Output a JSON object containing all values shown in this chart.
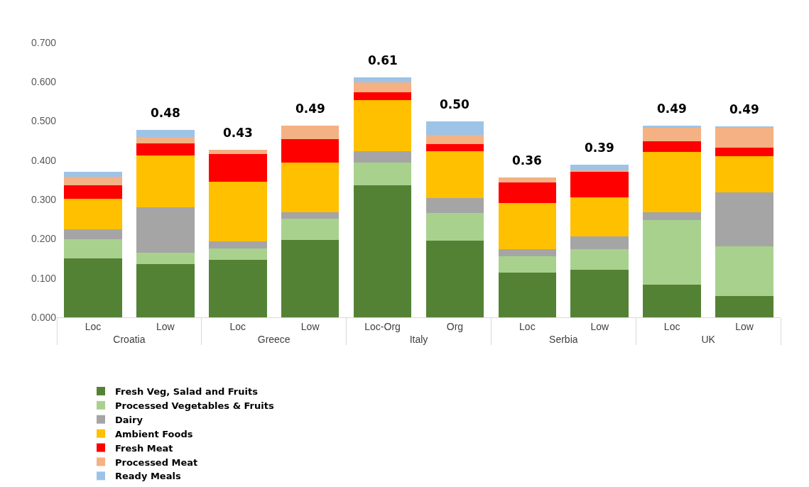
{
  "chart_data": {
    "type": "bar",
    "stacked": true,
    "categories": [
      "Loc",
      "Low",
      "Loc",
      "Low",
      "Loc-Org",
      "Org",
      "Loc",
      "Low",
      "Loc",
      "Low"
    ],
    "annotations": [
      "Croatia",
      "Greece",
      "Italy",
      "Serbia",
      "UK"
    ],
    "series": [
      {
        "name": "Fresh Veg, Salad and Fruits",
        "color": "#548235",
        "values": [
          0.15,
          0.136,
          0.147,
          0.198,
          0.337,
          0.195,
          0.114,
          0.122,
          0.084,
          0.055
        ]
      },
      {
        "name": "Processed Vegetables & Fruits",
        "color": "#a9d18e",
        "values": [
          0.049,
          0.028,
          0.029,
          0.053,
          0.057,
          0.07,
          0.041,
          0.052,
          0.164,
          0.125
        ]
      },
      {
        "name": "Dairy",
        "color": "#a5a5a5",
        "values": [
          0.026,
          0.116,
          0.018,
          0.017,
          0.03,
          0.038,
          0.018,
          0.032,
          0.02,
          0.138
        ]
      },
      {
        "name": "Ambient Foods",
        "color": "#ffc000",
        "values": [
          0.077,
          0.133,
          0.151,
          0.126,
          0.13,
          0.121,
          0.118,
          0.099,
          0.154,
          0.093
        ]
      },
      {
        "name": "Fresh Meat",
        "color": "#ff0000",
        "values": [
          0.035,
          0.031,
          0.071,
          0.06,
          0.019,
          0.017,
          0.052,
          0.065,
          0.027,
          0.021
        ]
      },
      {
        "name": "Processed Meat",
        "color": "#f4b183",
        "values": [
          0.021,
          0.016,
          0.01,
          0.035,
          0.025,
          0.024,
          0.013,
          0.005,
          0.034,
          0.051
        ]
      },
      {
        "name": "Ready Meals",
        "color": "#9dc3e6",
        "values": [
          0.012,
          0.018,
          null,
          null,
          0.013,
          0.035,
          null,
          0.013,
          0.006,
          0.003
        ]
      }
    ],
    "totals": [
      null,
      "0.48",
      "0.43",
      "0.49",
      "0.61",
      "0.50",
      "0.36",
      "0.39",
      "0.49",
      "0.49"
    ],
    "ylim": [
      0,
      0.7
    ],
    "yticks": [
      {
        "value": 0,
        "label": "0.000"
      },
      {
        "value": 0.1,
        "label": "0.100"
      },
      {
        "value": 0.2,
        "label": "0.200"
      },
      {
        "value": 0.3,
        "label": "0.300"
      },
      {
        "value": 0.4,
        "label": "0.400"
      },
      {
        "value": 0.5,
        "label": "0.500"
      },
      {
        "value": 0.6,
        "label": "0.600"
      },
      {
        "value": 0.7,
        "label": "0.700"
      }
    ],
    "grid": false,
    "legend": "bottom"
  }
}
